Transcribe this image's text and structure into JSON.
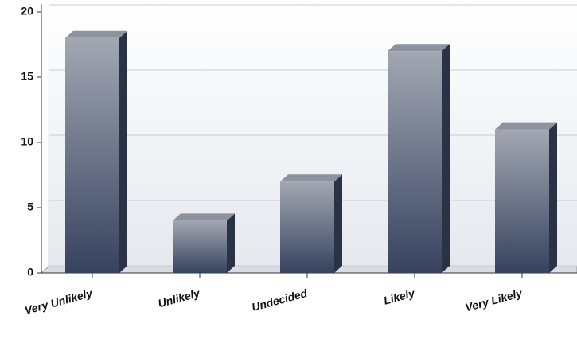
{
  "chart_data": {
    "type": "bar",
    "categories": [
      "Very Unlikely",
      "Unlikely",
      "Undecided",
      "Likely",
      "Very Likely"
    ],
    "values": [
      18,
      4,
      7,
      17,
      11
    ],
    "ylim": [
      0,
      20
    ],
    "yticks": [
      0,
      5,
      10,
      15,
      20
    ],
    "grid": true
  }
}
